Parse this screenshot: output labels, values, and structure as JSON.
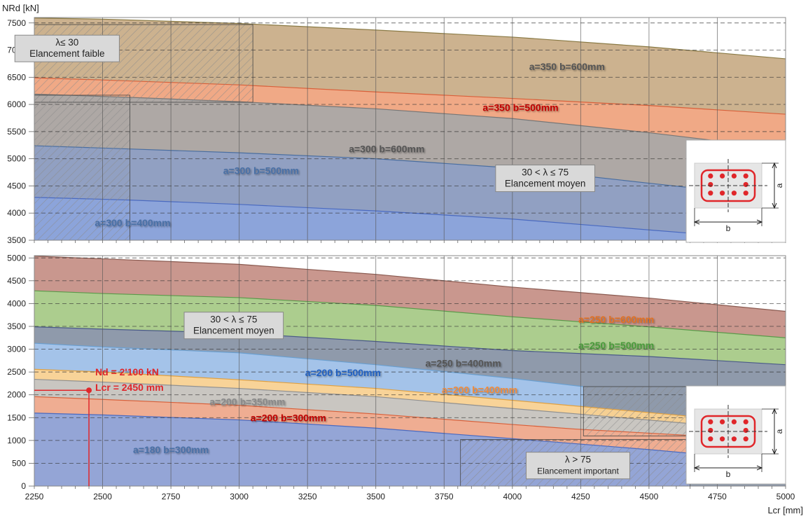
{
  "axis_labels": {
    "y": "NRd [kN]",
    "x": "Lcr [mm]"
  },
  "chart_data": [
    {
      "type": "area",
      "panel": "top",
      "xlim": [
        2250,
        5000
      ],
      "ylim": [
        3500,
        7600
      ],
      "yticks": [
        3500,
        4000,
        4500,
        5000,
        5500,
        6000,
        6500,
        7000,
        7500
      ],
      "xticks": [
        2250,
        2500,
        2750,
        3000,
        3250,
        3500,
        3750,
        4000,
        4250,
        4500,
        4750,
        5000
      ],
      "grid": true,
      "series": [
        {
          "name": "a=350 b=600mm",
          "color": "#c8ab86",
          "edge": "#8a7a45",
          "label_color": "#555555",
          "label_x": 4200,
          "label_y": 6630,
          "points": [
            [
              2250,
              7590
            ],
            [
              2500,
              7570
            ],
            [
              3000,
              7490
            ],
            [
              3500,
              7370
            ],
            [
              4000,
              7240
            ],
            [
              4500,
              7060
            ],
            [
              5000,
              6840
            ]
          ]
        },
        {
          "name": "a=350 b=500mm",
          "color": "#f3a886",
          "edge": "#d8603a",
          "label_color": "#c00000",
          "label_x": 4030,
          "label_y": 5880,
          "points": [
            [
              2250,
              6490
            ],
            [
              2500,
              6450
            ],
            [
              3000,
              6360
            ],
            [
              3500,
              6230
            ],
            [
              4000,
              6110
            ],
            [
              4500,
              5980
            ],
            [
              5000,
              5820
            ]
          ]
        },
        {
          "name": "a=300 b=600mm",
          "color": "#a8a8a8",
          "edge": "#777777",
          "label_color": "#555555",
          "label_x": 3540,
          "label_y": 5120,
          "points": [
            [
              2250,
              6190
            ],
            [
              2600,
              6130
            ],
            [
              3000,
              6050
            ],
            [
              3500,
              5920
            ],
            [
              4000,
              5740
            ],
            [
              4500,
              5480
            ],
            [
              5000,
              5180
            ]
          ]
        },
        {
          "name": "a=300 b=500mm",
          "color": "#8ea0c4",
          "edge": "#4a6ea0",
          "label_color": "#4a6fa5",
          "label_x": 3080,
          "label_y": 4720,
          "points": [
            [
              2250,
              5240
            ],
            [
              2600,
              5180
            ],
            [
              3000,
              5110
            ],
            [
              3500,
              5000
            ],
            [
              4000,
              4830
            ],
            [
              4500,
              4550
            ],
            [
              5000,
              4280
            ]
          ]
        },
        {
          "name": "a=300 b=400mm",
          "color": "#8ca4dc",
          "edge": "#4a6ac0",
          "label_color": "#4a6fa5",
          "label_x": 2610,
          "label_y": 3760,
          "points": [
            [
              2250,
              4290
            ],
            [
              2600,
              4240
            ],
            [
              3000,
              4160
            ],
            [
              3500,
              4040
            ],
            [
              4000,
              3890
            ],
            [
              4500,
              3690
            ],
            [
              5000,
              3490
            ]
          ]
        }
      ],
      "hatched_regions": [
        {
          "x": [
            2250,
            3050
          ],
          "y_top": 7470,
          "y_bottom": 6040
        },
        {
          "x": [
            2250,
            2600
          ],
          "y_top": 6170,
          "y_bottom": 3500
        }
      ],
      "annotations": [
        {
          "lines": [
            "λ≤ 30",
            "Elancement faible"
          ],
          "x": 2370,
          "y": 7030
        },
        {
          "lines": [
            "30 < λ ≤ 75",
            "Elancement moyen"
          ],
          "x": 4120,
          "y": 4640
        }
      ],
      "section_icon": {
        "labels": [
          "a",
          "b"
        ]
      }
    },
    {
      "type": "area",
      "panel": "bottom",
      "xlim": [
        2250,
        5000
      ],
      "ylim": [
        0,
        5050
      ],
      "yticks": [
        0,
        500,
        1000,
        1500,
        2000,
        2500,
        3000,
        3500,
        4000,
        4500,
        5000
      ],
      "xticks": [
        2250,
        2500,
        2750,
        3000,
        3250,
        3500,
        3750,
        4000,
        4250,
        4500,
        4750,
        5000
      ],
      "grid": true,
      "series": [
        {
          "name": "a=250 b=600mm",
          "color": "#c48e84",
          "edge": "#8a5a50",
          "label_color": "#e07020",
          "label_x": 4380,
          "label_y": 3580,
          "points": [
            [
              2250,
              5040
            ],
            [
              2500,
              4980
            ],
            [
              3000,
              4860
            ],
            [
              3500,
              4640
            ],
            [
              4000,
              4360
            ],
            [
              4500,
              4120
            ],
            [
              5000,
              3830
            ]
          ]
        },
        {
          "name": "a=250 b=500mm",
          "color": "#a9d18e",
          "edge": "#5a9a4a",
          "label_color": "#4a9a3a",
          "label_x": 4380,
          "label_y": 3010,
          "points": [
            [
              2250,
              4280
            ],
            [
              2500,
              4220
            ],
            [
              3000,
              4130
            ],
            [
              3500,
              3960
            ],
            [
              4000,
              3710
            ],
            [
              4500,
              3490
            ],
            [
              5000,
              3250
            ]
          ]
        },
        {
          "name": "a=250 b=400mm",
          "color": "#8c96ae",
          "edge": "#4a5a88",
          "label_color": "#555555",
          "label_x": 3820,
          "label_y": 2620,
          "points": [
            [
              2250,
              3490
            ],
            [
              2500,
              3440
            ],
            [
              3000,
              3350
            ],
            [
              3500,
              3170
            ],
            [
              4000,
              2970
            ],
            [
              4500,
              2840
            ],
            [
              5000,
              2660
            ]
          ]
        },
        {
          "name": "a=200 b=500mm",
          "color": "#a6c7ee",
          "edge": "#6a9fd0",
          "label_color": "#2060c0",
          "label_x": 3380,
          "label_y": 2410,
          "points": [
            [
              2250,
              3130
            ],
            [
              2500,
              3050
            ],
            [
              3000,
              2920
            ],
            [
              3500,
              2660
            ],
            [
              4000,
              2360
            ],
            [
              4260,
              2180
            ]
          ]
        },
        {
          "name": "a=200 b=400mm",
          "color": "#ffd590",
          "edge": "#e0a040",
          "label_color": "#f08a3a",
          "label_x": 3880,
          "label_y": 2030,
          "points": [
            [
              2250,
              2560
            ],
            [
              2500,
              2500
            ],
            [
              3000,
              2330
            ],
            [
              3500,
              2140
            ],
            [
              4000,
              1880
            ],
            [
              4260,
              1740
            ],
            [
              4650,
              1530
            ]
          ]
        },
        {
          "name": "a=200 b=350mm",
          "color": "#c4c4c4",
          "edge": "#909090",
          "label_color": "#888888",
          "label_x": 3030,
          "label_y": 1770,
          "points": [
            [
              2250,
              2340
            ],
            [
              2500,
              2280
            ],
            [
              3000,
              2140
            ],
            [
              3500,
              1960
            ],
            [
              4000,
              1700
            ],
            [
              4240,
              1580
            ],
            [
              4650,
              1370
            ]
          ]
        },
        {
          "name": "a=200 b=300mm",
          "color": "#f2aa8e",
          "edge": "#d8603a",
          "label_color": "#c00000",
          "label_x": 3180,
          "label_y": 1420,
          "points": [
            [
              2250,
              1960
            ],
            [
              2500,
              1900
            ],
            [
              3000,
              1770
            ],
            [
              3500,
              1580
            ],
            [
              4000,
              1350
            ],
            [
              4230,
              1250
            ],
            [
              4650,
              1110
            ]
          ]
        },
        {
          "name": "a=180 b=300mm",
          "color": "#8ca4dc",
          "edge": "#4a6ac0",
          "label_color": "#4a6fa5",
          "label_x": 2750,
          "label_y": 720,
          "points": [
            [
              2250,
              1600
            ],
            [
              2500,
              1560
            ],
            [
              3000,
              1450
            ],
            [
              3500,
              1270
            ],
            [
              4000,
              1040
            ],
            [
              4500,
              800
            ],
            [
              4650,
              720
            ]
          ]
        }
      ],
      "hatched_regions": [
        {
          "x": [
            3810,
            4650
          ],
          "y_top": 1020,
          "y_bottom": 0
        },
        {
          "x": [
            4260,
            4650
          ],
          "y_top": 2180,
          "y_bottom": 1100
        }
      ],
      "annotations": [
        {
          "lines": [
            "30 < λ ≤ 75",
            "Elancement moyen"
          ],
          "x": 2980,
          "y": 3520
        },
        {
          "lines": [
            "λ > 75",
            "Elancement important"
          ],
          "x": 4240,
          "y": 450
        }
      ],
      "marker": {
        "x": 2450,
        "y": 2100,
        "color": "#e0262a",
        "labels": [
          "Nd = 2'100 kN",
          "Lcr = 2450 mm"
        ]
      },
      "section_icon": {
        "labels": [
          "a",
          "b"
        ]
      }
    }
  ]
}
